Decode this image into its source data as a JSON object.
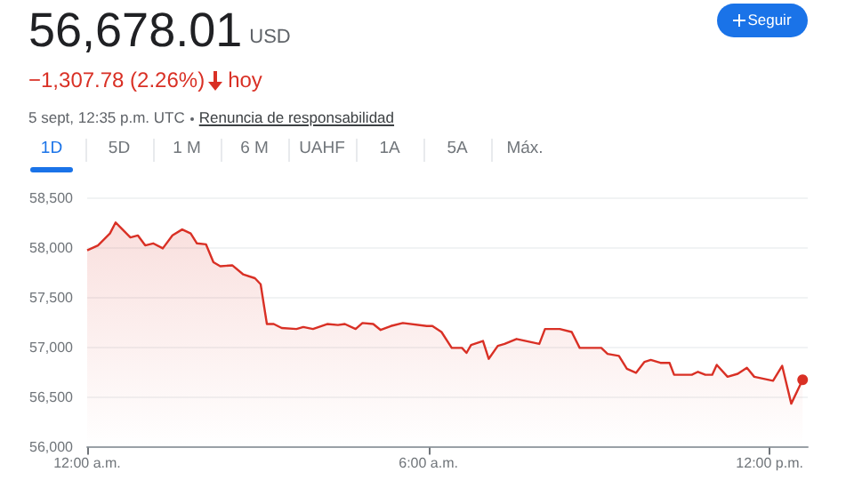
{
  "chart_data": {
    "type": "area",
    "title": "56,678.01",
    "annotations": [
      "USD",
      "−1,307.78 (2.26%)",
      "hoy",
      "5 sept, 12:35 p.m. UTC",
      "Renuncia de responsabilidad",
      "Seguir",
      "1D",
      "5D",
      "1 M",
      "6 M",
      "UAHF",
      "1A",
      "5A",
      "Máx."
    ],
    "x": [
      0,
      0.19,
      0.4,
      0.5,
      0.76,
      0.89,
      1.02,
      1.16,
      1.33,
      1.5,
      1.67,
      1.82,
      1.93,
      2.09,
      2.22,
      2.34,
      2.55,
      2.74,
      2.95,
      3.05,
      3.16,
      3.28,
      3.42,
      3.68,
      3.8,
      3.97,
      4.22,
      4.41,
      4.53,
      4.72,
      4.84,
      5.03,
      5.16,
      5.34,
      5.55,
      5.97,
      6.07,
      6.23,
      6.41,
      6.59,
      6.67,
      6.75,
      6.96,
      7.06,
      7.22,
      7.34,
      7.55,
      7.95,
      8.05,
      8.31,
      8.52,
      8.66,
      9.04,
      9.15,
      9.35,
      9.49,
      9.65,
      9.8,
      9.91,
      10.08,
      10.24,
      10.32,
      10.63,
      10.74,
      10.87,
      10.99,
      11.07,
      11.26,
      11.44,
      11.6,
      11.73,
      12.06,
      12.22,
      12.38,
      12.58
    ],
    "values": [
      57980,
      58030,
      58150,
      58260,
      58110,
      58130,
      58030,
      58050,
      58000,
      58130,
      58190,
      58150,
      58050,
      58040,
      57860,
      57820,
      57830,
      57740,
      57700,
      57640,
      57240,
      57240,
      57200,
      57190,
      57210,
      57190,
      57240,
      57230,
      57240,
      57190,
      57250,
      57240,
      57180,
      57220,
      57250,
      57220,
      57220,
      57160,
      57000,
      57000,
      56950,
      57030,
      57070,
      56890,
      57020,
      57040,
      57090,
      57040,
      57190,
      57190,
      57160,
      57000,
      57000,
      56940,
      56920,
      56790,
      56750,
      56860,
      56880,
      56850,
      56850,
      56730,
      56730,
      56760,
      56730,
      56730,
      56830,
      56710,
      56740,
      56800,
      56710,
      56670,
      56820,
      56440,
      56680
    ],
    "color": "#d93025",
    "xlim": [
      0,
      12.67
    ],
    "xticks": [
      {
        "value": 0,
        "label": "12:00 a.m."
      },
      {
        "value": 6,
        "label": "6:00 a.m."
      },
      {
        "value": 12,
        "label": "12:00 p.m."
      }
    ],
    "ylim": [
      56000,
      58500
    ],
    "yticks": [
      {
        "value": 56000,
        "label": "56,000"
      },
      {
        "value": 56500,
        "label": "56,500"
      },
      {
        "value": 57000,
        "label": "57,000"
      },
      {
        "value": 57500,
        "label": "57,500"
      },
      {
        "value": 58000,
        "label": "58,000"
      },
      {
        "value": 58500,
        "label": "58,500"
      }
    ],
    "grid": "y"
  }
}
